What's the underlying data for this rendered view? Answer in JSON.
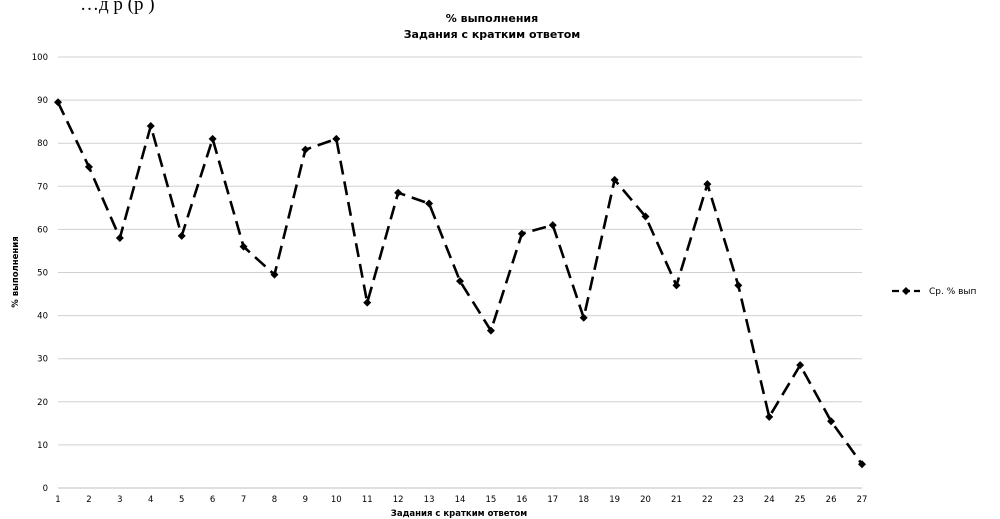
{
  "header_text": "…д    р     (р    )",
  "chart_data": {
    "type": "line",
    "title": "% выполнения",
    "subtitle": "Задания с кратким ответом",
    "xlabel": "Задания с кратким ответом",
    "ylabel": "% выполнения",
    "x": [
      1,
      2,
      3,
      4,
      5,
      6,
      7,
      8,
      9,
      10,
      11,
      12,
      13,
      14,
      15,
      16,
      17,
      18,
      19,
      20,
      21,
      22,
      23,
      24,
      25,
      26,
      27
    ],
    "ylim": [
      0,
      100
    ],
    "yticks": [
      0,
      10,
      20,
      30,
      40,
      50,
      60,
      70,
      80,
      90,
      100
    ],
    "grid": true,
    "legend_position": "right",
    "series": [
      {
        "name": "Ср. % вып",
        "values": [
          89.5,
          74.5,
          58,
          84,
          58.5,
          81,
          56,
          49.5,
          78.5,
          81,
          43,
          68.5,
          66,
          48,
          36.5,
          59,
          61,
          39.5,
          71.5,
          63,
          47,
          70.5,
          47,
          16.5,
          28.5,
          15.5,
          5.5
        ],
        "color": "#000000",
        "line_style": "dashed",
        "marker": "diamond"
      }
    ]
  }
}
